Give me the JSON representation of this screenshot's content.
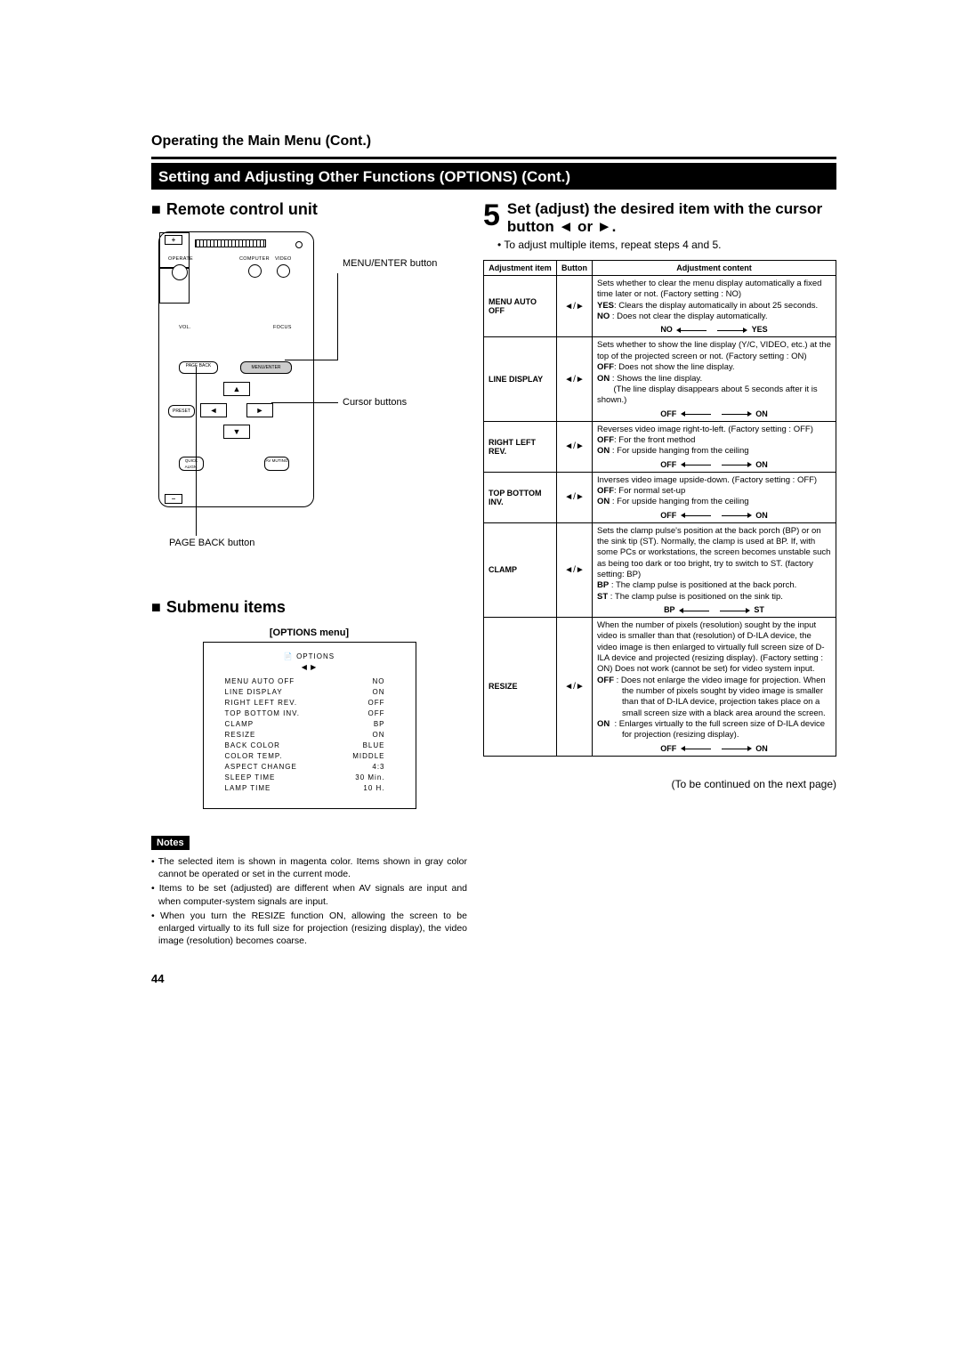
{
  "header": {
    "section_title": "Operating the Main Menu (Cont.)",
    "black_bar": "Setting and Adjusting Other Functions (OPTIONS) (Cont.)"
  },
  "left": {
    "remote_heading": "Remote control unit",
    "label_menu_enter": "MENU/ENTER button",
    "label_cursor": "Cursor buttons",
    "label_pageback": "PAGE BACK button",
    "remote_labels": {
      "operate": "OPERATE",
      "computer": "COMPUTER",
      "video": "VIDEO",
      "vol": "VOL.",
      "focus": "FOCUS",
      "pageback": "PAGE BACK",
      "menuenter": "MENU/ENTER",
      "preset": "PRESET",
      "quick": "QUICK ALIGN.",
      "avmute": "AV MUTING"
    },
    "submenu_heading": "Submenu items",
    "menu_caption": "[OPTIONS menu]",
    "options_menu": {
      "title": "OPTIONS",
      "rows": [
        {
          "l": "MENU AUTO OFF",
          "r": "NO"
        },
        {
          "l": "LINE DISPLAY",
          "r": "ON"
        },
        {
          "l": "RIGHT LEFT REV.",
          "r": "OFF"
        },
        {
          "l": "TOP BOTTOM INV.",
          "r": "OFF"
        },
        {
          "l": "CLAMP",
          "r": "BP"
        },
        {
          "l": "RESIZE",
          "r": "ON"
        },
        {
          "l": "BACK COLOR",
          "r": "BLUE"
        },
        {
          "l": "COLOR TEMP.",
          "r": "MIDDLE"
        },
        {
          "l": "ASPECT CHANGE",
          "r": "4:3"
        },
        {
          "l": "SLEEP TIME",
          "r": "30  Min."
        },
        {
          "l": "LAMP TIME",
          "r": "10   H."
        }
      ]
    },
    "notes_label": "Notes",
    "notes": [
      "The selected item is shown in magenta color. Items shown in gray color cannot be operated or set in the current mode.",
      "Items to be set (adjusted) are different when AV signals are input and when computer-system signals are input.",
      "When you turn the RESIZE function ON, allowing the screen to be enlarged virtually to its full size for projection (resizing display), the video image (resolution) becomes coarse."
    ]
  },
  "right": {
    "step_num": "5",
    "step_text": "Set (adjust) the desired item with the cursor button ◄ or ►.",
    "step_bullet": "To adjust multiple items, repeat steps 4 and 5.",
    "table": {
      "h1": "Adjustment item",
      "h2": "Button",
      "h3": "Adjustment content",
      "rows": [
        {
          "item": "MENU AUTO OFF",
          "btn": "◄/►",
          "content_html": "Sets whether to clear the menu display automatically a fixed time later or not. (Factory setting : NO)<br><span class='b'>YES</span>: Clears the display automatically in about 25 seconds.<br><span class='b'>NO</span>&nbsp;: Does not clear the display automatically.",
          "toggle_l": "NO",
          "toggle_r": "YES"
        },
        {
          "item": "LINE DISPLAY",
          "btn": "◄/►",
          "content_html": "Sets whether to show the line display (Y/C, VIDEO, etc.) at the top of the projected screen or not. (Factory setting : ON)<br><span class='b'>OFF</span>: Does not show the line display.<br><span class='b'>ON</span>&nbsp;: Shows the line display.<br>&nbsp;&nbsp;&nbsp;&nbsp;&nbsp;&nbsp;&nbsp;(The line display disappears about 5 seconds after it is shown.)",
          "toggle_l": "OFF",
          "toggle_r": "ON"
        },
        {
          "item": "RIGHT LEFT REV.",
          "btn": "◄/►",
          "content_html": "Reverses video image right-to-left. (Factory setting : OFF)<br><span class='b'>OFF</span>: For the front method<br><span class='b'>ON</span>&nbsp;: For upside hanging from the ceiling",
          "toggle_l": "OFF",
          "toggle_r": "ON"
        },
        {
          "item": "TOP BOTTOM INV.",
          "btn": "◄/►",
          "content_html": "Inverses video image upside-down. (Factory setting : OFF)<br><span class='b'>OFF</span>: For normal set-up<br><span class='b'>ON</span>&nbsp;: For upside hanging from the ceiling",
          "toggle_l": "OFF",
          "toggle_r": "ON"
        },
        {
          "item": "CLAMP",
          "btn": "◄/►",
          "content_html": "Sets the clamp pulse's position at the back porch (BP) or on the sink tip (ST). Normally, the clamp is used at BP. If, with some PCs or workstations, the screen becomes unstable such as being too dark or too bright, try to switch to ST. (factory setting: BP)<br><div class='hang'><span class='b'>BP</span>&nbsp;: The clamp pulse is positioned at the back porch.</div><div class='hang'><span class='b'>ST</span>&nbsp;: The clamp pulse is positioned on the sink tip.</div>",
          "toggle_l": "BP",
          "toggle_r": "ST"
        },
        {
          "item": "RESIZE",
          "btn": "◄/►",
          "content_html": "When the number of pixels (resolution) sought by the input video is smaller than that (resolution) of D-ILA device, the video image is then enlarged to virtually full screen size of D-ILA device and projected (resizing display). (Factory setting : ON) Does not work (cannot be set) for video system input.<br><div class='hang'><span class='b'>OFF</span> : Does not enlarge the video image for projection. When the number of pixels sought by video image is smaller than that of D-ILA device, projection takes place on a small screen size with a black area around the screen.</div><div class='hang'><span class='b'>ON</span>&nbsp;&nbsp;: Enlarges virtually to the full screen size of D-ILA device for projection (resizing display).</div>",
          "toggle_l": "OFF",
          "toggle_r": "ON"
        }
      ]
    },
    "continued": "(To be continued on the next page)"
  },
  "page_number": "44"
}
